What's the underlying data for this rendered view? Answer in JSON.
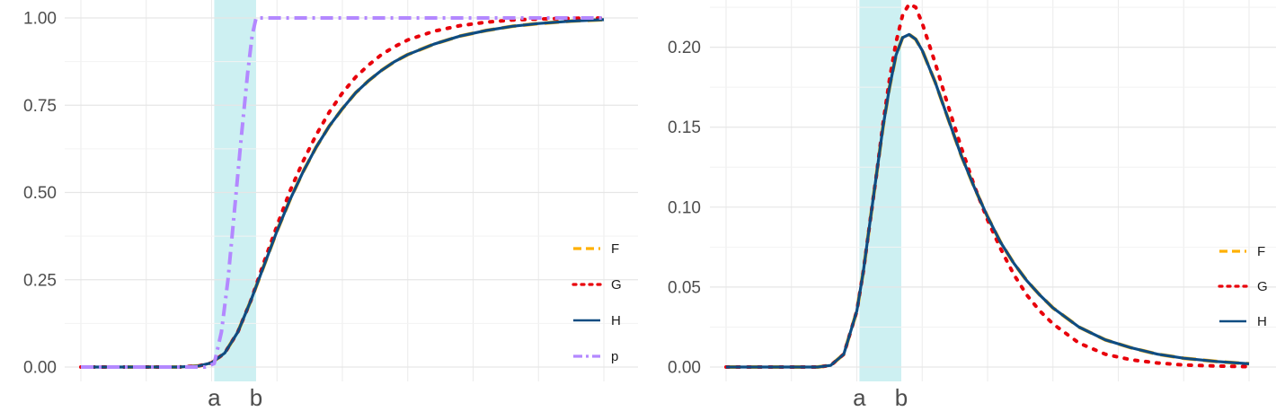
{
  "chart_data": [
    {
      "type": "line",
      "panel": "left",
      "title": "",
      "xlabel": "",
      "ylabel": "",
      "xlim": [
        0,
        8
      ],
      "ylim": [
        0,
        1
      ],
      "y_ticks": [
        0,
        0.25,
        0.5,
        0.75,
        1
      ],
      "y_tick_labels": [
        "0.00",
        "0.25",
        "0.50",
        "0.75",
        "1.00"
      ],
      "x_ticks": [
        2.04,
        2.68
      ],
      "x_tick_labels": [
        "a",
        "b"
      ],
      "shaded_region": {
        "from": 2.04,
        "to": 2.68,
        "color": "#cdf0f2"
      },
      "grid": true,
      "legend_position": "right",
      "series": [
        {
          "name": "F",
          "color": "#ffb000",
          "dash": "dashed",
          "x": [
            0,
            1.5,
            1.8,
            2.0,
            2.2,
            2.4,
            2.6,
            2.8,
            3.0,
            3.2,
            3.4,
            3.6,
            3.8,
            4.0,
            4.2,
            4.4,
            4.6,
            4.8,
            5.0,
            5.4,
            5.8,
            6.2,
            6.6,
            7.0,
            7.5,
            8.0
          ],
          "y": [
            0,
            0,
            0.003,
            0.012,
            0.04,
            0.1,
            0.19,
            0.29,
            0.39,
            0.48,
            0.56,
            0.63,
            0.69,
            0.74,
            0.785,
            0.82,
            0.85,
            0.875,
            0.895,
            0.925,
            0.948,
            0.964,
            0.976,
            0.984,
            0.991,
            0.995
          ]
        },
        {
          "name": "G",
          "color": "#e8000b",
          "dash": "dotted",
          "x": [
            0,
            1.5,
            1.8,
            2.0,
            2.2,
            2.4,
            2.6,
            2.8,
            3.0,
            3.2,
            3.4,
            3.6,
            3.8,
            4.0,
            4.2,
            4.4,
            4.6,
            4.8,
            5.0,
            5.4,
            5.8,
            6.2,
            6.6,
            7.0,
            7.5,
            8.0
          ],
          "y": [
            0,
            0,
            0.003,
            0.012,
            0.04,
            0.1,
            0.19,
            0.3,
            0.405,
            0.505,
            0.59,
            0.665,
            0.73,
            0.785,
            0.83,
            0.865,
            0.895,
            0.918,
            0.937,
            0.962,
            0.978,
            0.988,
            0.994,
            0.997,
            0.999,
            1.0
          ]
        },
        {
          "name": "H",
          "color": "#0f4c81",
          "dash": "solid",
          "x": [
            0,
            1.5,
            1.8,
            2.0,
            2.2,
            2.4,
            2.6,
            2.8,
            3.0,
            3.2,
            3.4,
            3.6,
            3.8,
            4.0,
            4.2,
            4.4,
            4.6,
            4.8,
            5.0,
            5.4,
            5.8,
            6.2,
            6.6,
            7.0,
            7.5,
            8.0
          ],
          "y": [
            0,
            0,
            0.003,
            0.012,
            0.04,
            0.1,
            0.19,
            0.29,
            0.39,
            0.48,
            0.56,
            0.63,
            0.69,
            0.74,
            0.785,
            0.82,
            0.85,
            0.875,
            0.895,
            0.925,
            0.948,
            0.964,
            0.976,
            0.984,
            0.991,
            0.995
          ]
        },
        {
          "name": "p",
          "color": "#b388ff",
          "dash": "dashdot",
          "x": [
            0,
            1.9,
            2.04,
            2.15,
            2.25,
            2.35,
            2.45,
            2.55,
            2.62,
            2.68,
            2.8,
            8.0
          ],
          "y": [
            0,
            0,
            0.01,
            0.1,
            0.25,
            0.45,
            0.65,
            0.84,
            0.95,
            1.0,
            1.0,
            1.0
          ]
        }
      ]
    },
    {
      "type": "line",
      "panel": "right",
      "title": "",
      "xlabel": "",
      "ylabel": "",
      "xlim": [
        0,
        8
      ],
      "ylim": [
        0,
        0.22
      ],
      "y_ticks": [
        0,
        0.05,
        0.1,
        0.15,
        0.2
      ],
      "y_tick_labels": [
        "0.00",
        "0.05",
        "0.10",
        "0.15",
        "0.20"
      ],
      "x_ticks": [
        2.04,
        2.68
      ],
      "x_tick_labels": [
        "a",
        "b"
      ],
      "shaded_region": {
        "from": 2.04,
        "to": 2.68,
        "color": "#cdf0f2"
      },
      "grid": true,
      "legend_position": "right",
      "series": [
        {
          "name": "F",
          "color": "#ffb000",
          "dash": "dashed",
          "x": [
            0,
            1.4,
            1.6,
            1.8,
            2.0,
            2.1,
            2.2,
            2.3,
            2.4,
            2.5,
            2.6,
            2.7,
            2.8,
            2.9,
            3.0,
            3.2,
            3.4,
            3.6,
            3.8,
            4.0,
            4.2,
            4.4,
            4.6,
            4.8,
            5.0,
            5.4,
            5.8,
            6.2,
            6.6,
            7.0,
            7.5,
            8.0
          ],
          "y": [
            0,
            0,
            0.001,
            0.008,
            0.035,
            0.06,
            0.09,
            0.12,
            0.15,
            0.175,
            0.195,
            0.206,
            0.208,
            0.205,
            0.198,
            0.178,
            0.155,
            0.132,
            0.112,
            0.094,
            0.078,
            0.065,
            0.054,
            0.045,
            0.037,
            0.025,
            0.017,
            0.012,
            0.008,
            0.0055,
            0.0035,
            0.002
          ]
        },
        {
          "name": "G",
          "color": "#e8000b",
          "dash": "dotted",
          "x": [
            0,
            1.4,
            1.6,
            1.8,
            2.0,
            2.1,
            2.2,
            2.3,
            2.4,
            2.5,
            2.6,
            2.7,
            2.8,
            2.9,
            3.0,
            3.2,
            3.4,
            3.6,
            3.8,
            4.0,
            4.2,
            4.4,
            4.6,
            4.8,
            5.0,
            5.4,
            5.8,
            6.2,
            6.6,
            7.0,
            7.5,
            8.0
          ],
          "y": [
            0,
            0,
            0.001,
            0.008,
            0.035,
            0.06,
            0.09,
            0.12,
            0.152,
            0.18,
            0.203,
            0.22,
            0.227,
            0.225,
            0.215,
            0.19,
            0.163,
            0.137,
            0.113,
            0.092,
            0.074,
            0.058,
            0.045,
            0.035,
            0.027,
            0.015,
            0.008,
            0.0045,
            0.0025,
            0.0013,
            0.0006,
            0.0002
          ]
        },
        {
          "name": "H",
          "color": "#0f4c81",
          "dash": "solid",
          "x": [
            0,
            1.4,
            1.6,
            1.8,
            2.0,
            2.1,
            2.2,
            2.3,
            2.4,
            2.5,
            2.6,
            2.7,
            2.8,
            2.9,
            3.0,
            3.2,
            3.4,
            3.6,
            3.8,
            4.0,
            4.2,
            4.4,
            4.6,
            4.8,
            5.0,
            5.4,
            5.8,
            6.2,
            6.6,
            7.0,
            7.5,
            8.0
          ],
          "y": [
            0,
            0,
            0.001,
            0.008,
            0.035,
            0.06,
            0.09,
            0.12,
            0.15,
            0.175,
            0.195,
            0.206,
            0.208,
            0.205,
            0.198,
            0.178,
            0.155,
            0.132,
            0.112,
            0.094,
            0.078,
            0.065,
            0.054,
            0.045,
            0.037,
            0.025,
            0.017,
            0.012,
            0.008,
            0.0055,
            0.0035,
            0.002
          ]
        }
      ]
    }
  ]
}
